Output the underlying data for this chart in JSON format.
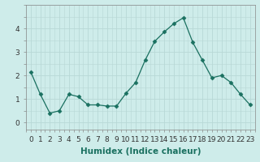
{
  "x": [
    0,
    1,
    2,
    3,
    4,
    5,
    6,
    7,
    8,
    9,
    10,
    11,
    12,
    13,
    14,
    15,
    16,
    17,
    18,
    19,
    20,
    21,
    22,
    23
  ],
  "y": [
    2.15,
    1.2,
    0.4,
    0.5,
    1.2,
    1.1,
    0.75,
    0.75,
    0.7,
    0.7,
    1.25,
    1.7,
    2.65,
    3.45,
    3.85,
    4.2,
    4.45,
    3.4,
    2.65,
    1.9,
    2.0,
    1.7,
    1.2,
    0.75
  ],
  "line_color": "#1a7060",
  "marker": "D",
  "marker_size": 2.5,
  "bg_color": "#ceecea",
  "grid_color": "#b8d8d6",
  "xlabel": "Humidex (Indice chaleur)",
  "ylabel": "",
  "xlim": [
    -0.5,
    23.5
  ],
  "ylim": [
    -0.3,
    5.0
  ],
  "yticks": [
    0,
    1,
    2,
    3,
    4
  ],
  "xtick_labels": [
    "0",
    "1",
    "2",
    "3",
    "4",
    "5",
    "6",
    "7",
    "8",
    "9",
    "10",
    "11",
    "12",
    "13",
    "14",
    "15",
    "16",
    "17",
    "18",
    "19",
    "20",
    "21",
    "22",
    "23"
  ],
  "xlabel_fontsize": 7.5,
  "tick_fontsize": 6.5
}
